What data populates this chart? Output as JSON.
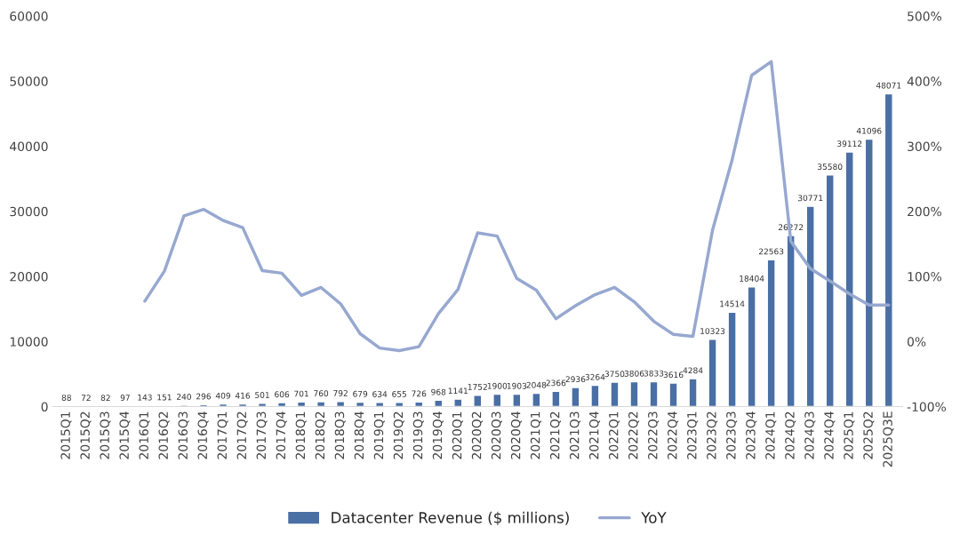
{
  "chart_data": {
    "type": "bar",
    "categories": [
      "2015Q1",
      "2015Q2",
      "2015Q3",
      "2015Q4",
      "2016Q1",
      "2016Q2",
      "2016Q3",
      "2016Q4",
      "2017Q1",
      "2017Q2",
      "2017Q3",
      "2017Q4",
      "2018Q1",
      "2018Q2",
      "2018Q3",
      "2018Q4",
      "2019Q1",
      "2019Q2",
      "2019Q3",
      "2019Q4",
      "2020Q1",
      "2020Q2",
      "2020Q3",
      "2020Q4",
      "2021Q1",
      "2021Q2",
      "2021Q3",
      "2021Q4",
      "2022Q1",
      "2022Q2",
      "2022Q3",
      "2022Q4",
      "2023Q1",
      "2023Q2",
      "2023Q3",
      "2023Q4",
      "2024Q1",
      "2024Q2",
      "2024Q3",
      "2024Q4",
      "2025Q1",
      "2025Q2",
      "2025Q3E"
    ],
    "series": [
      {
        "name": "Datacenter Revenue ($ millions)",
        "color": "#4a6fa5",
        "values": [
          88,
          72,
          82,
          97,
          143,
          151,
          240,
          296,
          409,
          416,
          501,
          606,
          701,
          760,
          792,
          679,
          634,
          655,
          726,
          968,
          1141,
          1752,
          1900,
          1903,
          2048,
          2366,
          2936,
          3264,
          3750,
          3806,
          3833,
          3616,
          4284,
          10323,
          14514,
          18404,
          22563,
          26272,
          30771,
          35580,
          39112,
          41096,
          48071
        ],
        "value_labels": [
          "88",
          "72",
          "82",
          "97",
          "143",
          "151",
          "240",
          "296",
          "409",
          "416",
          "501",
          "606",
          "701",
          "760",
          "792",
          "679",
          "634",
          "655",
          "726",
          "968",
          "1141",
          "1752",
          "1900",
          "1903",
          "2048",
          "2366",
          "2936",
          "3264",
          "3750",
          "3806",
          "3833",
          "3616",
          "4284",
          "10323",
          "14514",
          "18404",
          "22563",
          "26272",
          "30771",
          "35580",
          "39112",
          "41096",
          "48071"
        ]
      },
      {
        "name": "YoY",
        "type": "line",
        "axis": "y2",
        "color": "#97a8d0",
        "values": [
          null,
          null,
          null,
          null,
          62,
          108,
          193,
          203,
          186,
          175,
          109,
          105,
          71,
          83,
          58,
          12,
          -10,
          -14,
          -8,
          43,
          80,
          167,
          162,
          97,
          79,
          35,
          55,
          72,
          83,
          61,
          31,
          11,
          8,
          171,
          279,
          409,
          430,
          154,
          112,
          93,
          73,
          56,
          56
        ]
      }
    ],
    "ylim": [
      0,
      60000
    ],
    "yticks": [
      0,
      10000,
      20000,
      30000,
      40000,
      50000,
      60000
    ],
    "y2lim": [
      -100,
      500
    ],
    "y2ticks": [
      {
        "value": -100,
        "label": "-100%"
      },
      {
        "value": 0,
        "label": "0%"
      },
      {
        "value": 100,
        "label": "100%"
      },
      {
        "value": 200,
        "label": "200%"
      },
      {
        "value": 300,
        "label": "300%"
      },
      {
        "value": 400,
        "label": "400%"
      },
      {
        "value": 500,
        "label": "500%"
      }
    ],
    "grid": false,
    "legend": "bottom",
    "marker": "none",
    "line_style": "solid"
  }
}
